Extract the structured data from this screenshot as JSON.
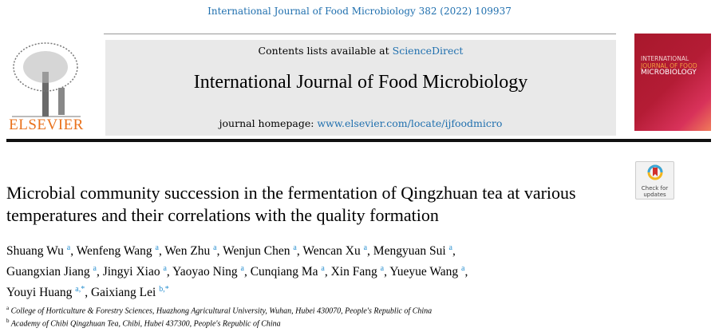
{
  "citation": "International Journal of Food Microbiology 382 (2022) 109937",
  "header": {
    "contents_prefix": "Contents lists available at ",
    "contents_link": "ScienceDirect",
    "journal_name": "International Journal of Food Microbiology",
    "homepage_prefix": "journal homepage: ",
    "homepage_link": "www.elsevier.com/locate/ijfoodmicro",
    "publisher_logo": "ELSEVIER",
    "cover_lines": [
      "INTERNATIONAL",
      "JOURNAL OF FOOD",
      "MICROBIOLOGY"
    ]
  },
  "badge": {
    "label1": "Check for",
    "label2": "updates"
  },
  "title": "Microbial community succession in the fermentation of Qingzhuan tea at various temperatures and their correlations with the quality formation",
  "authors": [
    {
      "name": "Shuang Wu",
      "aff": "a"
    },
    {
      "name": "Wenfeng Wang",
      "aff": "a"
    },
    {
      "name": "Wen Zhu",
      "aff": "a"
    },
    {
      "name": "Wenjun Chen",
      "aff": "a"
    },
    {
      "name": "Wencan Xu",
      "aff": "a"
    },
    {
      "name": "Mengyuan Sui",
      "aff": "a"
    },
    {
      "name": "Guangxian Jiang",
      "aff": "a"
    },
    {
      "name": "Jingyi Xiao",
      "aff": "a"
    },
    {
      "name": "Yaoyao Ning",
      "aff": "a"
    },
    {
      "name": "Cunqiang Ma",
      "aff": "a"
    },
    {
      "name": "Xin Fang",
      "aff": "a"
    },
    {
      "name": "Yueyue Wang",
      "aff": "a"
    },
    {
      "name": "Youyi Huang",
      "aff": "a,*"
    },
    {
      "name": "Gaixiang Lei",
      "aff": "b,*"
    }
  ],
  "affiliations": [
    {
      "mark": "a",
      "text": "College of Horticulture & Forestry Sciences, Huazhong Agricultural University, Wuhan, Hubei 430070, People's Republic of China"
    },
    {
      "mark": "b",
      "text": "Academy of Chibi Qingzhuan Tea, Chibi, Hubei 437300, People's Republic of China"
    }
  ]
}
